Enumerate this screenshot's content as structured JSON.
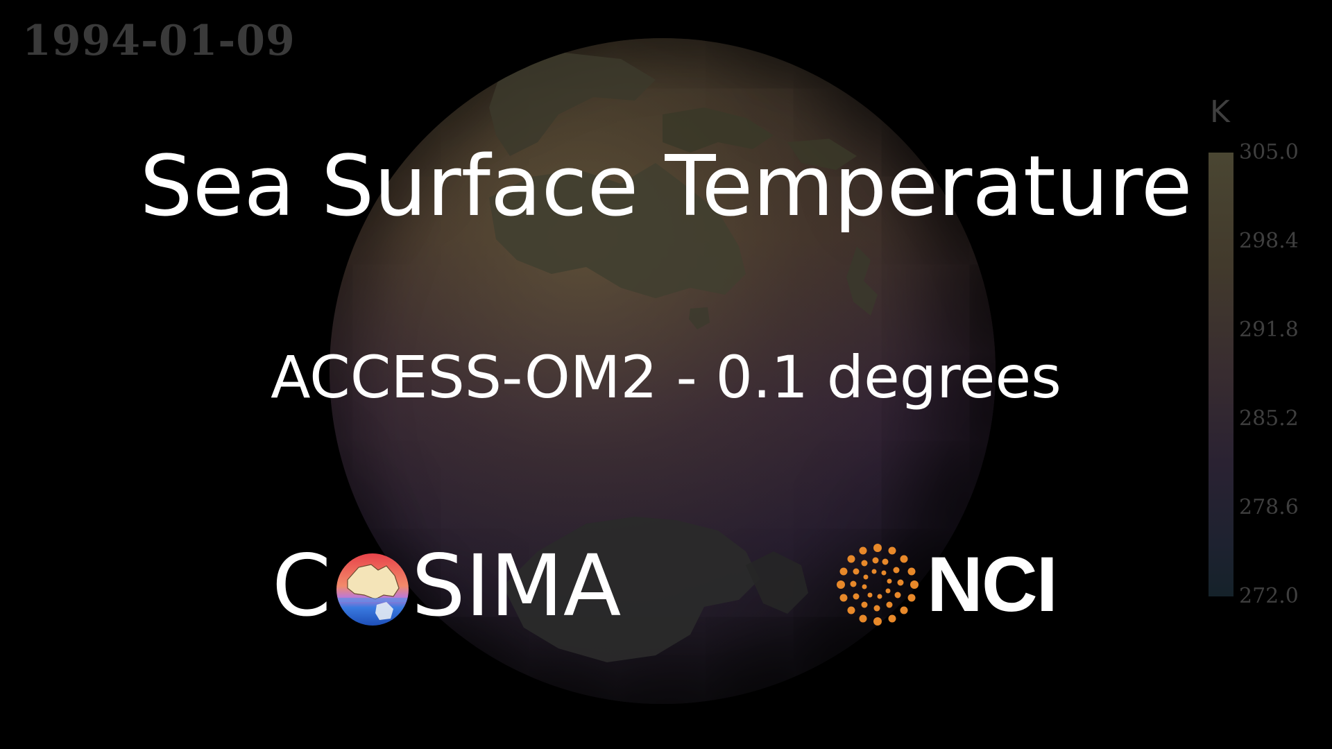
{
  "date": "1994-01-09",
  "title": "Sea Surface Temperature",
  "subtitle": "ACCESS-OM2 - 0.1 degrees",
  "logos": {
    "cosima": {
      "text_before": "C",
      "text_after": "SIMA"
    },
    "nci": {
      "text": "NCI"
    }
  },
  "colorbar": {
    "unit": "K",
    "ticks": [
      "305.0",
      "298.4",
      "291.8",
      "285.2",
      "278.6",
      "272.0"
    ]
  },
  "colors": {
    "background": "#000000",
    "title_text": "#ffffff",
    "overlay_text": "#3f3f3f",
    "nci_orange": "#e8892a"
  },
  "icons": [
    "globe-render",
    "cosima-logo-mark",
    "nci-logo-mark"
  ]
}
